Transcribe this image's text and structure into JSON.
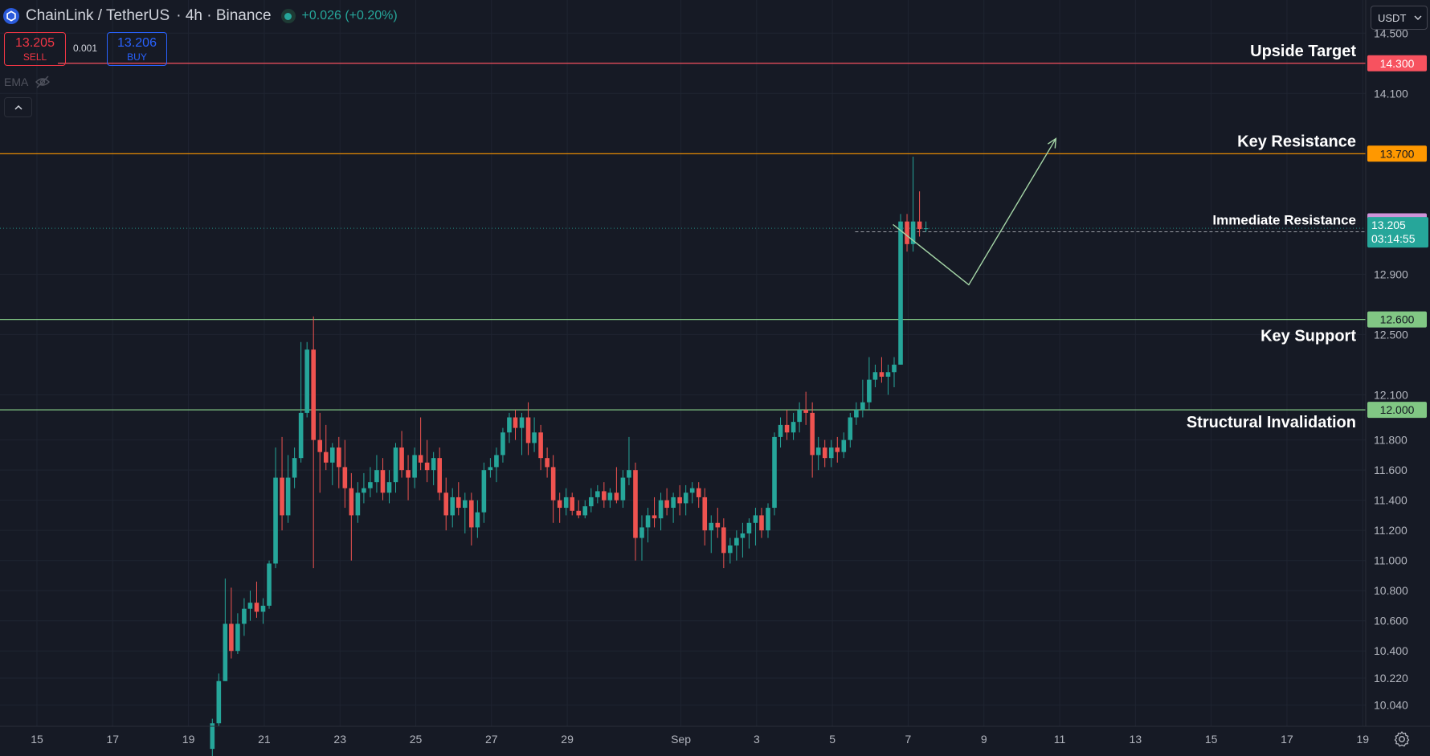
{
  "header": {
    "symbol": "ChainLink / TetherUS",
    "separator1": " · ",
    "timeframe": "4h",
    "separator2": " · ",
    "exchange": "Binance",
    "change": "+0.026 (+0.20%)",
    "coin_icon": "chainlink-hexagon-icon",
    "status_icon": "market-open-dot-icon"
  },
  "trade": {
    "sell_price": "13.205",
    "sell_label": "SELL",
    "spread": "0.001",
    "buy_price": "13.206",
    "buy_label": "BUY"
  },
  "indicator": {
    "label": "EMA",
    "icon": "eye-hidden-icon"
  },
  "collapse_icon": "chevron-up-icon",
  "currency": {
    "label": "USDT",
    "icon": "chevron-down-icon"
  },
  "settings_icon": "gear-icon",
  "colors": {
    "background": "#161a25",
    "up": "#26a69a",
    "down": "#ef5350",
    "upside_target": "#f7525f",
    "key_resistance": "#ff9800",
    "immediate_resistance": "#ce93d8",
    "support": "#81c784"
  },
  "chart_data": {
    "type": "candlestick",
    "title": "",
    "timeframe": "4h",
    "x_axis": {
      "ticks": [
        {
          "label": "15",
          "day": 15
        },
        {
          "label": "17",
          "day": 17
        },
        {
          "label": "19",
          "day": 19
        },
        {
          "label": "21",
          "day": 21
        },
        {
          "label": "23",
          "day": 23
        },
        {
          "label": "25",
          "day": 25
        },
        {
          "label": "27",
          "day": 27
        },
        {
          "label": "29",
          "day": 29
        },
        {
          "label": "Sep",
          "day": 32
        },
        {
          "label": "3",
          "day": 34
        },
        {
          "label": "5",
          "day": 36
        },
        {
          "label": "7",
          "day": 38
        },
        {
          "label": "9",
          "day": 40
        },
        {
          "label": "11",
          "day": 42
        },
        {
          "label": "13",
          "day": 44
        },
        {
          "label": "15",
          "day": 46
        },
        {
          "label": "17",
          "day": 48
        },
        {
          "label": "19",
          "day": 50
        }
      ]
    },
    "y_axis": {
      "range": [
        9.9,
        14.72
      ],
      "ticks": [
        "14.500",
        "14.100",
        "12.900",
        "12.500",
        "12.100",
        "11.800",
        "11.600",
        "11.400",
        "11.200",
        "11.000",
        "10.800",
        "10.600",
        "10.400",
        "10.220",
        "10.040"
      ]
    },
    "grid": true,
    "levels": [
      {
        "name": "Upside Target",
        "value": 14.3,
        "label": "14.300",
        "color": "#f7525f",
        "style": "solid"
      },
      {
        "name": "Key Resistance",
        "value": 13.7,
        "label": "13.700",
        "color": "#ff9800",
        "style": "solid"
      },
      {
        "name": "Immediate Resistance",
        "value": 13.251,
        "label": "13.251",
        "color": "#ce93d8",
        "style": "dashed"
      },
      {
        "name": "Key Support",
        "value": 12.6,
        "label": "12.600",
        "color": "#81c784",
        "style": "solid"
      },
      {
        "name": "Structural Invalidation",
        "value": 12.0,
        "label": "12.000",
        "color": "#81c784",
        "style": "solid"
      }
    ],
    "last_price": {
      "value": 13.205,
      "label": "13.205",
      "countdown": "03:14:55"
    },
    "projection": [
      {
        "day": 37.6,
        "price": 13.23
      },
      {
        "day": 39.6,
        "price": 12.83
      },
      {
        "day": 41.9,
        "price": 13.8
      }
    ],
    "candles": [
      {
        "day": 19.63,
        "o": 9.75,
        "h": 9.95,
        "l": 9.7,
        "c": 9.92
      },
      {
        "day": 19.8,
        "o": 9.92,
        "h": 10.25,
        "l": 9.9,
        "c": 10.2
      },
      {
        "day": 19.97,
        "o": 10.2,
        "h": 10.88,
        "l": 10.2,
        "c": 10.58
      },
      {
        "day": 20.13,
        "o": 10.58,
        "h": 10.82,
        "l": 10.35,
        "c": 10.4
      },
      {
        "day": 20.3,
        "o": 10.4,
        "h": 10.65,
        "l": 10.38,
        "c": 10.58
      },
      {
        "day": 20.47,
        "o": 10.58,
        "h": 10.75,
        "l": 10.5,
        "c": 10.68
      },
      {
        "day": 20.63,
        "o": 10.68,
        "h": 10.8,
        "l": 10.6,
        "c": 10.72
      },
      {
        "day": 20.8,
        "o": 10.72,
        "h": 10.86,
        "l": 10.62,
        "c": 10.66
      },
      {
        "day": 20.97,
        "o": 10.66,
        "h": 10.75,
        "l": 10.58,
        "c": 10.7
      },
      {
        "day": 21.13,
        "o": 10.7,
        "h": 11.0,
        "l": 10.68,
        "c": 10.98
      },
      {
        "day": 21.3,
        "o": 10.98,
        "h": 11.75,
        "l": 10.95,
        "c": 11.55
      },
      {
        "day": 21.47,
        "o": 11.55,
        "h": 11.82,
        "l": 11.2,
        "c": 11.3
      },
      {
        "day": 21.63,
        "o": 11.3,
        "h": 11.7,
        "l": 11.25,
        "c": 11.55
      },
      {
        "day": 21.8,
        "o": 11.55,
        "h": 11.75,
        "l": 11.48,
        "c": 11.68
      },
      {
        "day": 21.97,
        "o": 11.68,
        "h": 12.45,
        "l": 11.65,
        "c": 11.98
      },
      {
        "day": 22.13,
        "o": 11.98,
        "h": 12.45,
        "l": 11.95,
        "c": 12.4
      },
      {
        "day": 22.3,
        "o": 12.4,
        "h": 12.62,
        "l": 10.95,
        "c": 11.8
      },
      {
        "day": 22.47,
        "o": 11.8,
        "h": 11.98,
        "l": 11.45,
        "c": 11.72
      },
      {
        "day": 22.63,
        "o": 11.72,
        "h": 11.9,
        "l": 11.6,
        "c": 11.65
      },
      {
        "day": 22.8,
        "o": 11.65,
        "h": 11.78,
        "l": 11.5,
        "c": 11.75
      },
      {
        "day": 22.97,
        "o": 11.75,
        "h": 11.82,
        "l": 11.48,
        "c": 11.62
      },
      {
        "day": 23.13,
        "o": 11.62,
        "h": 11.8,
        "l": 11.35,
        "c": 11.48
      },
      {
        "day": 23.3,
        "o": 11.48,
        "h": 11.58,
        "l": 11.0,
        "c": 11.3
      },
      {
        "day": 23.47,
        "o": 11.3,
        "h": 11.52,
        "l": 11.25,
        "c": 11.45
      },
      {
        "day": 23.63,
        "o": 11.45,
        "h": 11.58,
        "l": 11.38,
        "c": 11.48
      },
      {
        "day": 23.8,
        "o": 11.48,
        "h": 11.62,
        "l": 11.42,
        "c": 11.52
      },
      {
        "day": 23.97,
        "o": 11.52,
        "h": 11.7,
        "l": 11.45,
        "c": 11.6
      },
      {
        "day": 24.13,
        "o": 11.6,
        "h": 11.68,
        "l": 11.4,
        "c": 11.45
      },
      {
        "day": 24.3,
        "o": 11.45,
        "h": 11.6,
        "l": 11.38,
        "c": 11.52
      },
      {
        "day": 24.47,
        "o": 11.52,
        "h": 11.78,
        "l": 11.45,
        "c": 11.75
      },
      {
        "day": 24.63,
        "o": 11.75,
        "h": 11.86,
        "l": 11.55,
        "c": 11.6
      },
      {
        "day": 24.8,
        "o": 11.6,
        "h": 11.7,
        "l": 11.4,
        "c": 11.55
      },
      {
        "day": 24.97,
        "o": 11.55,
        "h": 11.75,
        "l": 11.48,
        "c": 11.7
      },
      {
        "day": 25.13,
        "o": 11.7,
        "h": 11.95,
        "l": 11.6,
        "c": 11.65
      },
      {
        "day": 25.3,
        "o": 11.65,
        "h": 11.8,
        "l": 11.52,
        "c": 11.6
      },
      {
        "day": 25.47,
        "o": 11.6,
        "h": 11.72,
        "l": 11.5,
        "c": 11.68
      },
      {
        "day": 25.63,
        "o": 11.68,
        "h": 11.75,
        "l": 11.4,
        "c": 11.45
      },
      {
        "day": 25.8,
        "o": 11.45,
        "h": 11.55,
        "l": 11.2,
        "c": 11.3
      },
      {
        "day": 25.97,
        "o": 11.3,
        "h": 11.48,
        "l": 11.22,
        "c": 11.42
      },
      {
        "day": 26.13,
        "o": 11.42,
        "h": 11.52,
        "l": 11.3,
        "c": 11.35
      },
      {
        "day": 26.3,
        "o": 11.35,
        "h": 11.45,
        "l": 11.18,
        "c": 11.4
      },
      {
        "day": 26.47,
        "o": 11.4,
        "h": 11.45,
        "l": 11.1,
        "c": 11.22
      },
      {
        "day": 26.63,
        "o": 11.22,
        "h": 11.4,
        "l": 11.15,
        "c": 11.32
      },
      {
        "day": 26.8,
        "o": 11.32,
        "h": 11.65,
        "l": 11.25,
        "c": 11.6
      },
      {
        "day": 26.97,
        "o": 11.6,
        "h": 11.68,
        "l": 11.55,
        "c": 11.62
      },
      {
        "day": 27.13,
        "o": 11.62,
        "h": 11.75,
        "l": 11.52,
        "c": 11.7
      },
      {
        "day": 27.3,
        "o": 11.7,
        "h": 11.88,
        "l": 11.65,
        "c": 11.85
      },
      {
        "day": 27.47,
        "o": 11.85,
        "h": 11.98,
        "l": 11.78,
        "c": 11.95
      },
      {
        "day": 27.63,
        "o": 11.95,
        "h": 12.0,
        "l": 11.8,
        "c": 11.88
      },
      {
        "day": 27.8,
        "o": 11.88,
        "h": 11.98,
        "l": 11.7,
        "c": 11.95
      },
      {
        "day": 27.97,
        "o": 11.95,
        "h": 12.05,
        "l": 11.7,
        "c": 11.78
      },
      {
        "day": 28.13,
        "o": 11.78,
        "h": 11.95,
        "l": 11.72,
        "c": 11.85
      },
      {
        "day": 28.3,
        "o": 11.85,
        "h": 11.9,
        "l": 11.6,
        "c": 11.68
      },
      {
        "day": 28.47,
        "o": 11.68,
        "h": 11.75,
        "l": 11.55,
        "c": 11.62
      },
      {
        "day": 28.63,
        "o": 11.62,
        "h": 11.7,
        "l": 11.25,
        "c": 11.4
      },
      {
        "day": 28.8,
        "o": 11.4,
        "h": 11.45,
        "l": 11.25,
        "c": 11.35
      },
      {
        "day": 28.97,
        "o": 11.35,
        "h": 11.48,
        "l": 11.3,
        "c": 11.42
      },
      {
        "day": 29.13,
        "o": 11.42,
        "h": 11.45,
        "l": 11.3,
        "c": 11.33
      },
      {
        "day": 29.3,
        "o": 11.33,
        "h": 11.4,
        "l": 11.28,
        "c": 11.3
      },
      {
        "day": 29.47,
        "o": 11.3,
        "h": 11.4,
        "l": 11.28,
        "c": 11.36
      },
      {
        "day": 29.63,
        "o": 11.36,
        "h": 11.48,
        "l": 11.32,
        "c": 11.42
      },
      {
        "day": 29.8,
        "o": 11.42,
        "h": 11.5,
        "l": 11.38,
        "c": 11.46
      },
      {
        "day": 29.97,
        "o": 11.46,
        "h": 11.52,
        "l": 11.35,
        "c": 11.4
      },
      {
        "day": 30.13,
        "o": 11.4,
        "h": 11.48,
        "l": 11.35,
        "c": 11.45
      },
      {
        "day": 30.3,
        "o": 11.45,
        "h": 11.62,
        "l": 11.38,
        "c": 11.4
      },
      {
        "day": 30.47,
        "o": 11.4,
        "h": 11.6,
        "l": 11.35,
        "c": 11.55
      },
      {
        "day": 30.63,
        "o": 11.55,
        "h": 11.82,
        "l": 11.5,
        "c": 11.6
      },
      {
        "day": 30.8,
        "o": 11.6,
        "h": 11.65,
        "l": 11.0,
        "c": 11.15
      },
      {
        "day": 30.97,
        "o": 11.15,
        "h": 11.3,
        "l": 11.0,
        "c": 11.22
      },
      {
        "day": 31.13,
        "o": 11.22,
        "h": 11.35,
        "l": 11.12,
        "c": 11.3
      },
      {
        "day": 31.3,
        "o": 11.3,
        "h": 11.42,
        "l": 11.22,
        "c": 11.28
      },
      {
        "day": 31.47,
        "o": 11.28,
        "h": 11.45,
        "l": 11.2,
        "c": 11.4
      },
      {
        "day": 31.63,
        "o": 11.4,
        "h": 11.48,
        "l": 11.3,
        "c": 11.35
      },
      {
        "day": 31.8,
        "o": 11.35,
        "h": 11.45,
        "l": 11.25,
        "c": 11.42
      },
      {
        "day": 31.97,
        "o": 11.42,
        "h": 11.5,
        "l": 11.3,
        "c": 11.38
      },
      {
        "day": 32.13,
        "o": 11.38,
        "h": 11.5,
        "l": 11.3,
        "c": 11.45
      },
      {
        "day": 32.3,
        "o": 11.45,
        "h": 11.52,
        "l": 11.38,
        "c": 11.48
      },
      {
        "day": 32.47,
        "o": 11.48,
        "h": 11.52,
        "l": 11.35,
        "c": 11.42
      },
      {
        "day": 32.63,
        "o": 11.42,
        "h": 11.48,
        "l": 11.1,
        "c": 11.2
      },
      {
        "day": 32.8,
        "o": 11.2,
        "h": 11.3,
        "l": 11.05,
        "c": 11.25
      },
      {
        "day": 32.97,
        "o": 11.25,
        "h": 11.35,
        "l": 11.15,
        "c": 11.22
      },
      {
        "day": 33.13,
        "o": 11.22,
        "h": 11.28,
        "l": 10.95,
        "c": 11.05
      },
      {
        "day": 33.3,
        "o": 11.05,
        "h": 11.15,
        "l": 10.98,
        "c": 11.1
      },
      {
        "day": 33.47,
        "o": 11.1,
        "h": 11.2,
        "l": 11.0,
        "c": 11.15
      },
      {
        "day": 33.63,
        "o": 11.15,
        "h": 11.25,
        "l": 11.02,
        "c": 11.18
      },
      {
        "day": 33.8,
        "o": 11.18,
        "h": 11.28,
        "l": 11.08,
        "c": 11.25
      },
      {
        "day": 33.97,
        "o": 11.25,
        "h": 11.35,
        "l": 11.1,
        "c": 11.3
      },
      {
        "day": 34.13,
        "o": 11.3,
        "h": 11.35,
        "l": 11.15,
        "c": 11.2
      },
      {
        "day": 34.3,
        "o": 11.2,
        "h": 11.38,
        "l": 11.15,
        "c": 11.35
      },
      {
        "day": 34.47,
        "o": 11.35,
        "h": 11.85,
        "l": 11.3,
        "c": 11.82
      },
      {
        "day": 34.63,
        "o": 11.82,
        "h": 11.95,
        "l": 11.75,
        "c": 11.9
      },
      {
        "day": 34.8,
        "o": 11.9,
        "h": 12.0,
        "l": 11.8,
        "c": 11.85
      },
      {
        "day": 34.97,
        "o": 11.85,
        "h": 11.98,
        "l": 11.8,
        "c": 11.92
      },
      {
        "day": 35.13,
        "o": 11.92,
        "h": 12.05,
        "l": 11.85,
        "c": 12.0
      },
      {
        "day": 35.3,
        "o": 12.0,
        "h": 12.12,
        "l": 11.9,
        "c": 11.98
      },
      {
        "day": 35.47,
        "o": 11.98,
        "h": 12.05,
        "l": 11.55,
        "c": 11.7
      },
      {
        "day": 35.63,
        "o": 11.7,
        "h": 11.82,
        "l": 11.6,
        "c": 11.75
      },
      {
        "day": 35.8,
        "o": 11.75,
        "h": 11.8,
        "l": 11.62,
        "c": 11.68
      },
      {
        "day": 35.97,
        "o": 11.68,
        "h": 11.8,
        "l": 11.62,
        "c": 11.75
      },
      {
        "day": 36.13,
        "o": 11.75,
        "h": 11.82,
        "l": 11.65,
        "c": 11.72
      },
      {
        "day": 36.3,
        "o": 11.72,
        "h": 11.85,
        "l": 11.68,
        "c": 11.8
      },
      {
        "day": 36.47,
        "o": 11.8,
        "h": 11.98,
        "l": 11.75,
        "c": 11.95
      },
      {
        "day": 36.63,
        "o": 11.95,
        "h": 12.05,
        "l": 11.9,
        "c": 12.0
      },
      {
        "day": 36.8,
        "o": 12.0,
        "h": 12.2,
        "l": 11.95,
        "c": 12.05
      },
      {
        "day": 36.97,
        "o": 12.05,
        "h": 12.35,
        "l": 12.0,
        "c": 12.2
      },
      {
        "day": 37.13,
        "o": 12.2,
        "h": 12.3,
        "l": 12.15,
        "c": 12.25
      },
      {
        "day": 37.3,
        "o": 12.25,
        "h": 12.35,
        "l": 12.18,
        "c": 12.22
      },
      {
        "day": 37.47,
        "o": 12.22,
        "h": 12.3,
        "l": 12.1,
        "c": 12.25
      },
      {
        "day": 37.63,
        "o": 12.25,
        "h": 12.35,
        "l": 12.15,
        "c": 12.3
      },
      {
        "day": 37.8,
        "o": 12.3,
        "h": 13.3,
        "l": 12.3,
        "c": 13.25
      },
      {
        "day": 37.97,
        "o": 13.25,
        "h": 13.3,
        "l": 13.05,
        "c": 13.1
      },
      {
        "day": 38.13,
        "o": 13.1,
        "h": 13.68,
        "l": 13.05,
        "c": 13.25
      },
      {
        "day": 38.3,
        "o": 13.25,
        "h": 13.45,
        "l": 13.15,
        "c": 13.2
      },
      {
        "day": 38.47,
        "o": 13.2,
        "h": 13.25,
        "l": 13.18,
        "c": 13.205
      }
    ]
  }
}
